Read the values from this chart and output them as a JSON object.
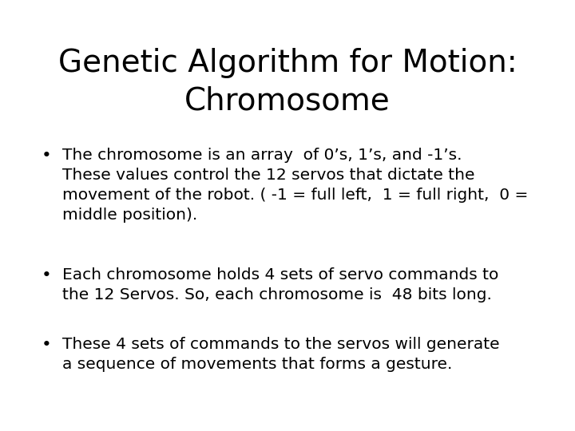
{
  "title_line1": "Genetic Algorithm for Motion:",
  "title_line2": "Chromosome",
  "bullet1_lines": [
    "The chromosome is an array  of 0’s, 1’s, and -1’s.",
    "These values control the 12 servos that dictate the",
    "movement of the robot. ( -1 = full left,  1 = full right,  0 =",
    "middle position)."
  ],
  "bullet2_lines": [
    "Each chromosome holds 4 sets of servo commands to",
    "the 12 Servos. So, each chromosome is  48 bits long."
  ],
  "bullet3_lines": [
    "These 4 sets of commands to the servos will generate",
    "a sequence of movements that forms a gesture."
  ],
  "bg_color": "#ffffff",
  "text_color": "#000000",
  "title_fontsize": 28,
  "body_fontsize": 14.5,
  "font_family": "DejaVu Sans"
}
